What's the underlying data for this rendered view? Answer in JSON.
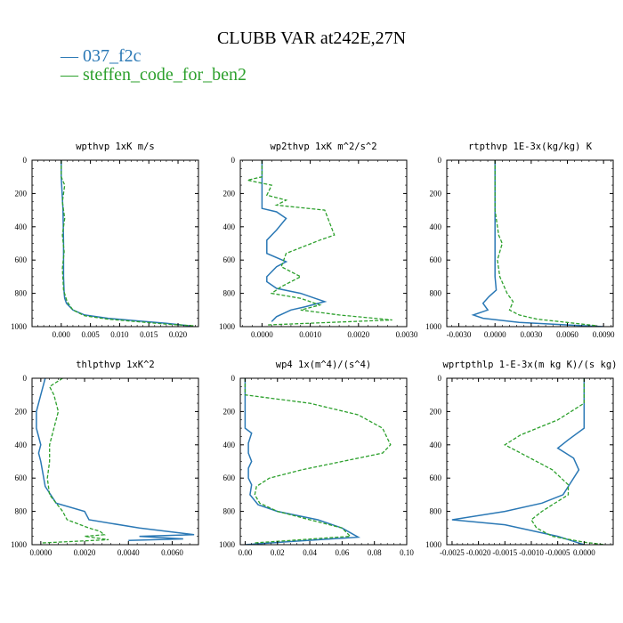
{
  "figure": {
    "title": "CLUBB VAR at242E,27N",
    "legend": [
      {
        "label": "— 037_f2c",
        "color": "#2a78b5"
      },
      {
        "label": "— steffen_code_for_ben2",
        "color": "#2ca02c"
      }
    ]
  },
  "chart_data": [
    {
      "type": "line",
      "title": "wpthvp  1xK m/s",
      "xlim": [
        -0.005,
        0.0235
      ],
      "ylim": [
        0,
        1000
      ],
      "y_inverted": true,
      "xticks": [
        0.0,
        0.005,
        0.01,
        0.015,
        0.02
      ],
      "xtick_labels": [
        "0.000",
        "0.005",
        "0.010",
        "0.015",
        "0.020"
      ],
      "yticks": [
        0,
        200,
        400,
        600,
        800,
        1000
      ],
      "ytick_labels": [
        "0",
        "200",
        "400",
        "600",
        "800",
        "1000"
      ],
      "series": [
        {
          "name": "037_f2c",
          "color": "#2a78b5",
          "dashed": false,
          "x": [
            0.0,
            0.0,
            0.0003,
            0.0004,
            0.0004,
            0.0005,
            0.0006,
            0.0009,
            0.002,
            0.004,
            0.008,
            0.013,
            0.018,
            0.022
          ],
          "y": [
            0,
            100,
            300,
            500,
            700,
            800,
            830,
            860,
            900,
            930,
            950,
            965,
            980,
            995
          ]
        },
        {
          "name": "steffen_code_for_ben2",
          "color": "#2ca02c",
          "dashed": true,
          "x": [
            0.0,
            0.0,
            0.0006,
            0.0002,
            0.0006,
            0.0002,
            0.0005,
            0.0002,
            0.0004,
            0.001,
            0.002,
            0.004,
            0.008,
            0.013,
            0.018,
            0.023
          ],
          "y": [
            0,
            100,
            150,
            250,
            350,
            450,
            550,
            650,
            780,
            850,
            900,
            935,
            955,
            970,
            985,
            995
          ]
        }
      ]
    },
    {
      "type": "line",
      "title": "wp2thvp  1xK m^2/s^2",
      "xlim": [
        -0.00045,
        0.003
      ],
      "ylim": [
        0,
        1000
      ],
      "y_inverted": true,
      "xticks": [
        0.0,
        0.001,
        0.002,
        0.003
      ],
      "xtick_labels": [
        "0.0000",
        "0.0010",
        "0.0020",
        "0.0030"
      ],
      "yticks": [
        0,
        200,
        400,
        600,
        800,
        1000
      ],
      "ytick_labels": [
        "0",
        "200",
        "400",
        "600",
        "800",
        "1000"
      ],
      "series": [
        {
          "name": "037_f2c",
          "color": "#2a78b5",
          "dashed": false,
          "x": [
            0.0,
            0.0,
            0.0,
            0.0003,
            0.0005,
            0.0003,
            0.0001,
            0.0001,
            0.0005,
            0.0003,
            0.0001,
            0.0001,
            0.0003,
            0.0008,
            0.0011,
            0.0013,
            0.0009,
            0.0006,
            0.0003,
            0.0002
          ],
          "y": [
            0,
            150,
            290,
            310,
            350,
            420,
            480,
            560,
            610,
            640,
            700,
            730,
            770,
            800,
            830,
            850,
            880,
            900,
            940,
            970
          ]
        },
        {
          "name": "steffen_code_for_ben2",
          "color": "#2ca02c",
          "dashed": true,
          "x": [
            0.0,
            0.0,
            -0.0003,
            0.0002,
            0.0001,
            0.0005,
            0.0003,
            0.0013,
            0.0015,
            0.0012,
            0.0005,
            0.0004,
            0.0008,
            0.0004,
            0.0002,
            0.0008,
            0.0012,
            0.0008,
            0.0016,
            0.0027,
            0.0001
          ],
          "y": [
            0,
            100,
            120,
            150,
            210,
            240,
            270,
            300,
            450,
            480,
            560,
            640,
            700,
            760,
            800,
            830,
            870,
            900,
            930,
            960,
            990
          ]
        }
      ]
    },
    {
      "type": "line",
      "title": "rtpthvp  1E-3x(kg/kg) K",
      "xlim": [
        -0.004,
        0.0098
      ],
      "ylim": [
        0,
        1000
      ],
      "y_inverted": true,
      "xticks": [
        -0.003,
        0.0,
        0.003,
        0.006,
        0.009
      ],
      "xtick_labels": [
        "-0.0030",
        "0.0000",
        "0.0030",
        "0.0060",
        "0.0090"
      ],
      "yticks": [
        0,
        200,
        400,
        600,
        800,
        1000
      ],
      "ytick_labels": [
        "0",
        "200",
        "400",
        "600",
        "800",
        "1000"
      ],
      "series": [
        {
          "name": "037_f2c",
          "color": "#2a78b5",
          "dashed": false,
          "x": [
            0.0,
            0.0,
            0.0,
            0.0001,
            -0.0005,
            -0.001,
            -0.0006,
            -0.0018,
            -0.001,
            0.002,
            0.006,
            0.009
          ],
          "y": [
            0,
            400,
            700,
            780,
            820,
            860,
            900,
            930,
            950,
            975,
            990,
            1000
          ]
        },
        {
          "name": "steffen_code_for_ben2",
          "color": "#2ca02c",
          "dashed": true,
          "x": [
            0.0,
            0.0,
            0.0003,
            0.0006,
            0.0002,
            0.0004,
            0.001,
            0.0015,
            0.0012,
            0.002,
            0.0035,
            0.006,
            0.0085
          ],
          "y": [
            0,
            300,
            450,
            500,
            600,
            700,
            800,
            850,
            900,
            930,
            955,
            975,
            995
          ]
        }
      ]
    },
    {
      "type": "line",
      "title": "thlpthvp  1xK^2",
      "xlim": [
        -0.0004,
        0.0072
      ],
      "ylim": [
        0,
        1000
      ],
      "y_inverted": true,
      "xticks": [
        0.0,
        0.002,
        0.004,
        0.006
      ],
      "xtick_labels": [
        "0.0000",
        "0.0020",
        "0.0040",
        "0.0060"
      ],
      "yticks": [
        0,
        200,
        400,
        600,
        800,
        1000
      ],
      "ytick_labels": [
        "0",
        "200",
        "400",
        "600",
        "800",
        "1000"
      ],
      "series": [
        {
          "name": "037_f2c",
          "color": "#2a78b5",
          "dashed": false,
          "x": [
            0.0002,
            0.0,
            -0.0002,
            -0.0002,
            0.0,
            -0.0001,
            0.0,
            0.0002,
            0.0007,
            0.002,
            0.0022,
            0.0045,
            0.007,
            0.0045,
            0.0065,
            0.004
          ],
          "y": [
            0,
            100,
            200,
            300,
            400,
            450,
            500,
            650,
            750,
            800,
            850,
            900,
            940,
            950,
            965,
            975
          ]
        },
        {
          "name": "steffen_code_for_ben2",
          "color": "#2ca02c",
          "dashed": true,
          "x": [
            0.001,
            0.0004,
            0.0006,
            0.0008,
            0.0006,
            0.0004,
            0.0004,
            0.0003,
            0.0004,
            0.0007,
            0.001,
            0.0012,
            0.0022,
            0.0027,
            0.0029,
            0.002,
            0.0031,
            0.0
          ],
          "y": [
            0,
            50,
            100,
            200,
            300,
            400,
            500,
            600,
            700,
            750,
            800,
            850,
            900,
            920,
            940,
            950,
            970,
            990
          ]
        }
      ]
    },
    {
      "type": "line",
      "title": "wp4  1x(m^4)/(s^4)",
      "xlim": [
        -0.003,
        0.1
      ],
      "ylim": [
        0,
        1000
      ],
      "y_inverted": true,
      "xticks": [
        0.0,
        0.02,
        0.04,
        0.06,
        0.08,
        0.1
      ],
      "xtick_labels": [
        "0.00",
        "0.02",
        "0.04",
        "0.06",
        "0.08",
        "0.10"
      ],
      "yticks": [
        0,
        200,
        400,
        600,
        800,
        1000
      ],
      "ytick_labels": [
        "0",
        "200",
        "400",
        "600",
        "800",
        "1000"
      ],
      "series": [
        {
          "name": "037_f2c",
          "color": "#2a78b5",
          "dashed": false,
          "x": [
            0.0,
            0.0,
            0.0,
            0.004,
            0.002,
            0.002,
            0.004,
            0.002,
            0.002,
            0.004,
            0.003,
            0.008,
            0.02,
            0.045,
            0.06,
            0.07,
            0.03,
            0.0
          ],
          "y": [
            0,
            120,
            300,
            330,
            390,
            450,
            500,
            540,
            600,
            640,
            700,
            760,
            800,
            850,
            900,
            955,
            980,
            1000
          ]
        },
        {
          "name": "steffen_code_for_ben2",
          "color": "#2ca02c",
          "dashed": true,
          "x": [
            0.0,
            0.0,
            0.04,
            0.07,
            0.085,
            0.09,
            0.085,
            0.06,
            0.035,
            0.015,
            0.007,
            0.006,
            0.009,
            0.02,
            0.04,
            0.06,
            0.065,
            0.005
          ],
          "y": [
            0,
            100,
            150,
            220,
            300,
            400,
            450,
            500,
            550,
            600,
            650,
            700,
            750,
            800,
            850,
            900,
            950,
            990
          ]
        }
      ]
    },
    {
      "type": "line",
      "title": "wprtpthlp  1-E-3x(m kg K)/(s kg)",
      "xlim": [
        -0.0026,
        0.00055
      ],
      "ylim": [
        0,
        1000
      ],
      "y_inverted": true,
      "xticks": [
        -0.0025,
        -0.002,
        -0.0015,
        -0.001,
        -0.0005,
        0.0
      ],
      "xtick_labels": [
        "-0.0025",
        "-0.0020",
        "-0.0015",
        "-0.0010",
        "-0.0005",
        "0.0000"
      ],
      "yticks": [
        0,
        200,
        400,
        600,
        800,
        1000
      ],
      "ytick_labels": [
        "0",
        "200",
        "400",
        "600",
        "800",
        "1000"
      ],
      "series": [
        {
          "name": "037_f2c",
          "color": "#2a78b5",
          "dashed": false,
          "x": [
            0.0,
            0.0,
            0.0,
            -0.0003,
            -0.0005,
            -0.0002,
            -0.0001,
            -0.0004,
            -0.0008,
            -0.0015,
            -0.0025,
            -0.0015,
            -0.0005,
            0.0
          ],
          "y": [
            0,
            150,
            300,
            370,
            420,
            480,
            550,
            700,
            750,
            800,
            850,
            880,
            950,
            1000
          ]
        },
        {
          "name": "steffen_code_for_ben2",
          "color": "#2ca02c",
          "dashed": true,
          "x": [
            0.0,
            0.0,
            -0.0005,
            -0.0012,
            -0.0015,
            -0.0012,
            -0.0006,
            -0.0003,
            -0.0003,
            -0.0006,
            -0.0008,
            -0.001,
            -0.0009,
            -0.0006,
            0.0,
            0.0004
          ],
          "y": [
            0,
            150,
            250,
            340,
            400,
            450,
            550,
            640,
            700,
            760,
            800,
            850,
            900,
            950,
            985,
            1000
          ]
        }
      ]
    }
  ]
}
